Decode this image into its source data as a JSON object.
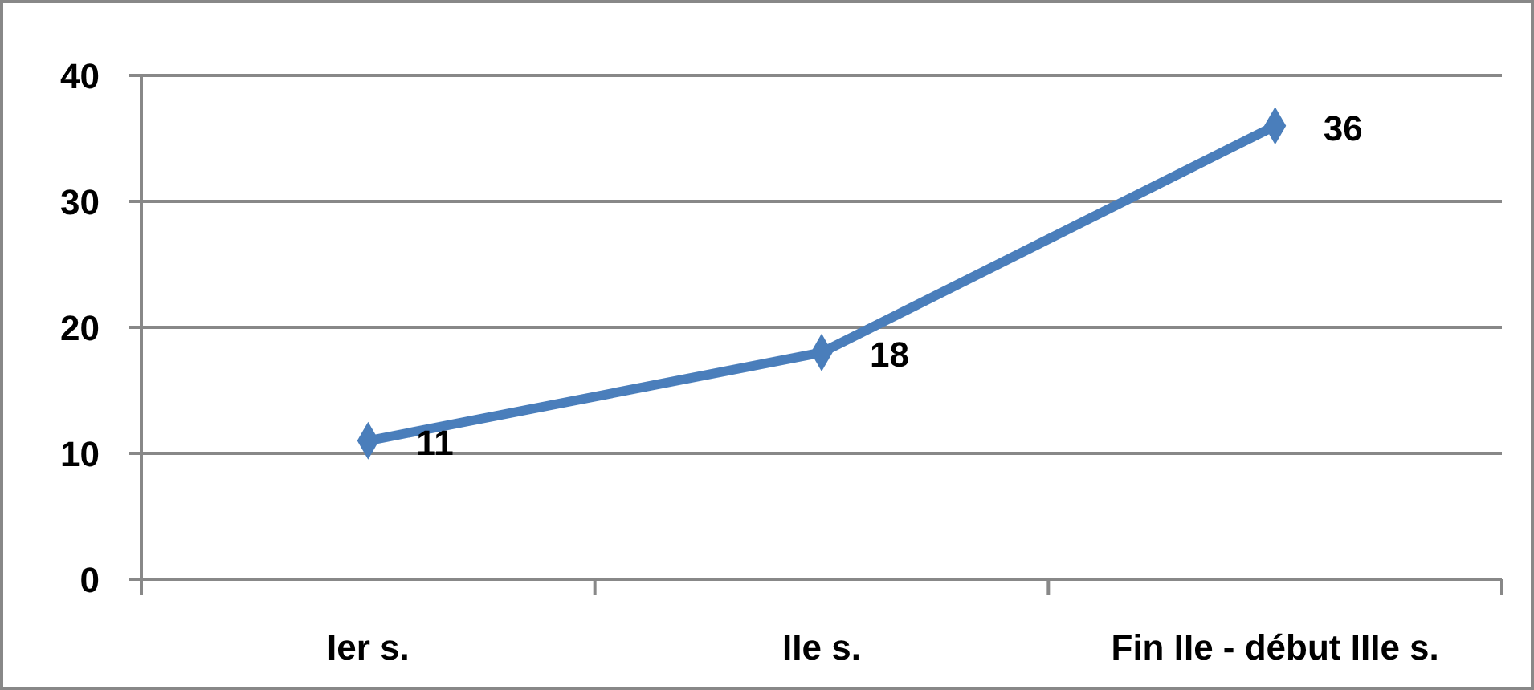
{
  "chart_data": {
    "type": "line",
    "categories": [
      "Ier s.",
      "IIe s.",
      "Fin IIe - début IIIe s."
    ],
    "series": [
      {
        "color": "#4a7ebb",
        "values": [
          11,
          18,
          36
        ]
      }
    ],
    "ylim": [
      0,
      40
    ],
    "yticks": [
      0,
      10,
      20,
      30,
      40
    ],
    "grid": "y",
    "marker": "diamond",
    "line_style": "solid",
    "data_labels": true
  }
}
